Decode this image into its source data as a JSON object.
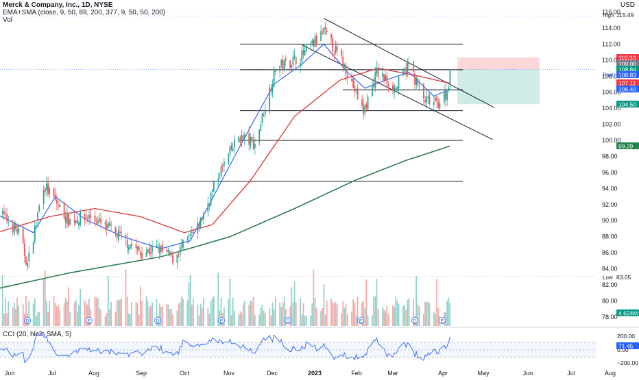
{
  "header": {
    "title": "Merck & Company, Inc., 1D, NYSE",
    "ema_sma": "EMA+SMA (close, 9, 50, 89, 200, 377, 9, 50, 50, 200)",
    "vol": "Vol",
    "currency": "USD"
  },
  "cci": {
    "label": "CCI (20, hlc3, SMA, 5)",
    "ticks": [
      "200.00",
      "0.00",
      "−200.00"
    ],
    "value": "71.45"
  },
  "price_axis": {
    "ticks": [
      "116.00",
      "114.00",
      "112.00",
      "110.00",
      "108.00",
      "106.00",
      "104.00",
      "102.00",
      "100.00",
      "98.00",
      "96.00",
      "94.00",
      "92.00",
      "90.00",
      "88.00",
      "86.00",
      "84.00",
      "82.00",
      "80.00",
      "78.00"
    ],
    "high_label": "High",
    "high_value": "115.49",
    "low_label": "Low",
    "low_value": "83.05",
    "post_label": "Post",
    "tags": [
      {
        "text": "110.33",
        "color": "#f23645"
      },
      {
        "text": "109.00",
        "color": "#787b86"
      },
      {
        "text": "108.84",
        "color": "#089981"
      },
      {
        "text": "108.83",
        "color": "#2962ff"
      },
      {
        "text": "107.11",
        "color": "#f23645"
      },
      {
        "text": "106.40",
        "color": "#2962ff"
      },
      {
        "text": "104.50",
        "color": "#089981"
      },
      {
        "text": "99.29",
        "color": "#1e8449"
      },
      {
        "text": "4.624M",
        "color": "#089981"
      }
    ]
  },
  "time_axis": [
    "Jun",
    "Jul",
    "Aug",
    "Sep",
    "Oct",
    "Nov",
    "Dec",
    "2023",
    "Feb",
    "Mar",
    "Apr",
    "May",
    "Jun",
    "Jul",
    "Aug"
  ],
  "event_markers": [
    "D",
    "E",
    "D",
    "E",
    "D",
    "E",
    "D",
    "E"
  ],
  "colors": {
    "up": "#26a69a",
    "down": "#ef5350",
    "ema": "#2962ff",
    "sma50": "#e03131",
    "sma200": "#2e7d4f"
  },
  "chart_data": {
    "type": "candlestick",
    "symbol": "Merck & Company, Inc., 1D, NYSE",
    "ylim": [
      78,
      116
    ],
    "anchors": [
      {
        "date": "2022-05-26",
        "close": 91.5
      },
      {
        "date": "2022-06-10",
        "close": 88.5
      },
      {
        "date": "2022-06-16",
        "close": 84.5
      },
      {
        "date": "2022-06-27",
        "close": 94.5
      },
      {
        "date": "2022-07-14",
        "close": 90.0
      },
      {
        "date": "2022-07-29",
        "close": 90.5
      },
      {
        "date": "2022-08-18",
        "close": 88.0
      },
      {
        "date": "2022-09-01",
        "close": 86.0
      },
      {
        "date": "2022-09-13",
        "close": 86.5
      },
      {
        "date": "2022-09-23",
        "close": 85.3
      },
      {
        "date": "2022-10-10",
        "close": 89.0
      },
      {
        "date": "2022-10-25",
        "close": 96.0
      },
      {
        "date": "2022-11-07",
        "close": 100.5
      },
      {
        "date": "2022-11-18",
        "close": 99.5
      },
      {
        "date": "2022-12-02",
        "close": 109.0
      },
      {
        "date": "2022-12-20",
        "close": 110.5
      },
      {
        "date": "2023-01-04",
        "close": 113.5
      },
      {
        "date": "2023-01-19",
        "close": 109.0
      },
      {
        "date": "2023-01-31",
        "close": 103.5
      },
      {
        "date": "2023-02-09",
        "close": 108.5
      },
      {
        "date": "2023-02-22",
        "close": 106.5
      },
      {
        "date": "2023-03-03",
        "close": 109.5
      },
      {
        "date": "2023-03-13",
        "close": 105.0
      },
      {
        "date": "2023-03-22",
        "close": 104.5
      },
      {
        "date": "2023-03-29",
        "close": 106.0
      },
      {
        "date": "2023-03-31",
        "close": 108.8
      }
    ],
    "ema": [
      {
        "date": "2022-05-26",
        "v": 90.8
      },
      {
        "date": "2022-06-20",
        "v": 88.5
      },
      {
        "date": "2022-07-05",
        "v": 93.0
      },
      {
        "date": "2022-07-25",
        "v": 90.2
      },
      {
        "date": "2022-08-20",
        "v": 88.0
      },
      {
        "date": "2022-09-15",
        "v": 86.5
      },
      {
        "date": "2022-10-05",
        "v": 87.5
      },
      {
        "date": "2022-10-25",
        "v": 94.5
      },
      {
        "date": "2022-11-10",
        "v": 100.0
      },
      {
        "date": "2022-12-01",
        "v": 107.0
      },
      {
        "date": "2022-12-20",
        "v": 109.5
      },
      {
        "date": "2023-01-04",
        "v": 112.0
      },
      {
        "date": "2023-01-20",
        "v": 108.5
      },
      {
        "date": "2023-02-01",
        "v": 106.5
      },
      {
        "date": "2023-02-15",
        "v": 107.5
      },
      {
        "date": "2023-03-03",
        "v": 108.5
      },
      {
        "date": "2023-03-20",
        "v": 105.5
      },
      {
        "date": "2023-03-31",
        "v": 106.4
      }
    ],
    "sma50": [
      {
        "date": "2022-05-26",
        "v": 88.5
      },
      {
        "date": "2022-07-01",
        "v": 90.5
      },
      {
        "date": "2022-08-01",
        "v": 91.5
      },
      {
        "date": "2022-09-01",
        "v": 90.5
      },
      {
        "date": "2022-10-01",
        "v": 88.5
      },
      {
        "date": "2022-10-20",
        "v": 89.5
      },
      {
        "date": "2022-11-15",
        "v": 95.0
      },
      {
        "date": "2022-12-15",
        "v": 103.0
      },
      {
        "date": "2023-01-15",
        "v": 107.5
      },
      {
        "date": "2023-02-10",
        "v": 109.0
      },
      {
        "date": "2023-03-10",
        "v": 108.0
      },
      {
        "date": "2023-03-31",
        "v": 107.1
      }
    ],
    "sma200": [
      {
        "date": "2022-05-26",
        "v": 81.5
      },
      {
        "date": "2022-07-15",
        "v": 83.5
      },
      {
        "date": "2022-09-15",
        "v": 85.5
      },
      {
        "date": "2022-11-01",
        "v": 88.0
      },
      {
        "date": "2022-12-15",
        "v": 91.5
      },
      {
        "date": "2023-01-25",
        "v": 95.0
      },
      {
        "date": "2023-03-01",
        "v": 97.5
      },
      {
        "date": "2023-03-31",
        "v": 99.29
      }
    ],
    "horizontal_levels": [
      {
        "price": 115.49
      },
      {
        "price": 112.0
      },
      {
        "price": 108.8
      },
      {
        "price": 106.3
      },
      {
        "price": 103.7
      },
      {
        "price": 100.0
      },
      {
        "price": 94.9
      }
    ],
    "trendlines": [
      {
        "from": {
          "date": "2023-01-04",
          "price": 115.2
        },
        "to": {
          "date": "2023-04-30",
          "price": 104.1
        }
      },
      {
        "from": {
          "date": "2022-12-20",
          "price": 111.9
        },
        "to": {
          "date": "2023-04-29",
          "price": 100.1
        }
      }
    ],
    "position": {
      "entry": 108.83,
      "stop": 110.33,
      "target": 104.5
    },
    "cci_value": 71.45
  }
}
